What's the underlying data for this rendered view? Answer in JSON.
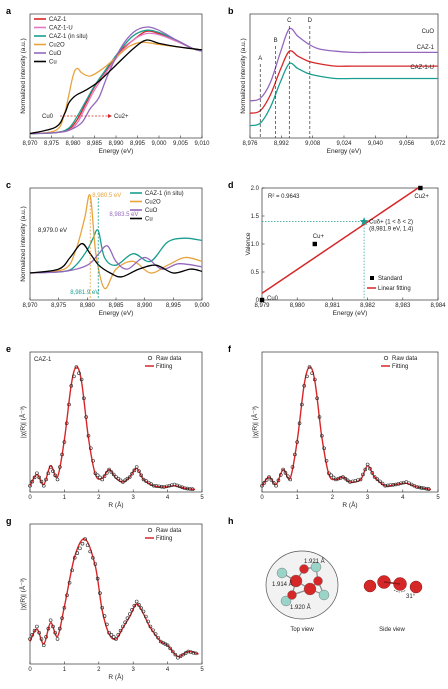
{
  "chart_data": [
    {
      "panel": "a",
      "type": "line",
      "xlabel": "Energy (eV)",
      "ylabel": "Normalized intensity (a.u.)",
      "xlim": [
        8970,
        9010
      ],
      "xticks": [
        "8,970",
        "8,975",
        "8,980",
        "8,985",
        "8,990",
        "8,995",
        "9,000",
        "9,005",
        "9,010"
      ],
      "legend": [
        "CAZ-1",
        "CAZ-1-U",
        "CAZ-1 (in situ)",
        "Cu2O",
        "CuO",
        "Cu"
      ],
      "annotations": [
        "Cu0",
        "Cu2+"
      ],
      "series": [
        {
          "name": "CAZ-1",
          "color": "#d62728",
          "x": [
            8970,
            8976,
            8979,
            8981,
            8983,
            8985,
            8988,
            8991,
            8994,
            8997,
            9000,
            9004,
            9008,
            9010
          ],
          "y": [
            0.02,
            0.03,
            0.06,
            0.15,
            0.3,
            0.45,
            0.62,
            0.78,
            0.88,
            0.96,
            0.94,
            0.88,
            0.8,
            0.78
          ]
        },
        {
          "name": "CAZ-1-U",
          "color": "#e377c2",
          "x": [
            8970,
            8976,
            8979,
            8981,
            8983,
            8985,
            8988,
            8991,
            8994,
            8997,
            9000,
            9004,
            9008,
            9010
          ],
          "y": [
            0.02,
            0.03,
            0.05,
            0.12,
            0.27,
            0.42,
            0.6,
            0.76,
            0.88,
            0.94,
            0.93,
            0.87,
            0.8,
            0.78
          ]
        },
        {
          "name": "CAZ-1 (in situ)",
          "color": "#1a9e8f",
          "x": [
            8970,
            8976,
            8979,
            8981,
            8983,
            8985,
            8988,
            8991,
            8994,
            8997,
            9000,
            9004,
            9008,
            9010
          ],
          "y": [
            0.02,
            0.03,
            0.07,
            0.18,
            0.32,
            0.46,
            0.63,
            0.79,
            0.92,
            0.97,
            0.95,
            0.88,
            0.8,
            0.78
          ]
        },
        {
          "name": "Cu2O",
          "color": "#e8a33d",
          "x": [
            8970,
            8976,
            8978,
            8980,
            8981,
            8982,
            8984,
            8987,
            8990,
            8993,
            8996,
            9000,
            9004,
            9008,
            9010
          ],
          "y": [
            0.02,
            0.05,
            0.2,
            0.55,
            0.62,
            0.58,
            0.55,
            0.62,
            0.72,
            0.82,
            0.86,
            0.84,
            0.82,
            0.8,
            0.79
          ]
        },
        {
          "name": "CuO",
          "color": "#9467bd",
          "x": [
            8970,
            8976,
            8979,
            8982,
            8984,
            8986,
            8988,
            8991,
            8994,
            8997,
            9000,
            9004,
            9008,
            9010
          ],
          "y": [
            0.02,
            0.03,
            0.05,
            0.12,
            0.25,
            0.35,
            0.55,
            0.8,
            0.95,
            1.0,
            0.97,
            0.88,
            0.8,
            0.78
          ]
        },
        {
          "name": "Cu",
          "color": "#000000",
          "x": [
            8970,
            8976,
            8978,
            8979,
            8980,
            8981,
            8983,
            8986,
            8990,
            8994,
            8997,
            9000,
            9004,
            9008,
            9010
          ],
          "y": [
            0.02,
            0.08,
            0.2,
            0.3,
            0.35,
            0.38,
            0.42,
            0.5,
            0.65,
            0.8,
            0.88,
            0.85,
            0.82,
            0.8,
            0.79
          ]
        }
      ]
    },
    {
      "panel": "b",
      "type": "line",
      "xlabel": "Energy (eV)",
      "ylabel": "Normalized intensity (a.u.)",
      "xlim": [
        8970,
        9080
      ],
      "xticks": [
        "8,976",
        "8,992",
        "9,008",
        "9,024",
        "9,040",
        "9,056",
        "9,072"
      ],
      "markers": [
        "A",
        "B",
        "C",
        "D"
      ],
      "series_labels": [
        "CuO",
        "CAZ-1",
        "CAZ-1-U"
      ],
      "series": [
        {
          "name": "CuO",
          "color": "#9467bd",
          "x": [
            8970,
            8976,
            8982,
            8988,
            8993,
            8998,
            9004,
            9010,
            9020,
            9030,
            9040,
            9050,
            9060,
            9070,
            9080
          ],
          "y": [
            0.4,
            0.42,
            0.55,
            0.8,
            0.98,
            0.92,
            0.86,
            0.82,
            0.8,
            0.79,
            0.79,
            0.79,
            0.79,
            0.79,
            0.79
          ]
        },
        {
          "name": "CAZ-1",
          "color": "#d62728",
          "x": [
            8970,
            8976,
            8982,
            8988,
            8993,
            8998,
            9004,
            9010,
            9020,
            9030,
            9040,
            9050,
            9060,
            9070,
            9080
          ],
          "y": [
            0.3,
            0.32,
            0.45,
            0.66,
            0.8,
            0.76,
            0.72,
            0.7,
            0.68,
            0.68,
            0.68,
            0.68,
            0.68,
            0.68,
            0.68
          ]
        },
        {
          "name": "CAZ-1-U",
          "color": "#1a9e8f",
          "x": [
            8970,
            8976,
            8982,
            8988,
            8993,
            8998,
            9004,
            9010,
            9020,
            9030,
            9040,
            9050,
            9060,
            9070,
            9080
          ],
          "y": [
            0.2,
            0.22,
            0.35,
            0.56,
            0.7,
            0.66,
            0.62,
            0.6,
            0.58,
            0.58,
            0.58,
            0.58,
            0.58,
            0.58,
            0.58
          ]
        }
      ]
    },
    {
      "panel": "c",
      "type": "line",
      "xlabel": "Energy (eV)",
      "ylabel": "Normalized intensity (a.u.)",
      "xlim": [
        8970,
        9000
      ],
      "xticks": [
        "8,970",
        "8,975",
        "8,980",
        "8,985",
        "8,990",
        "8,995",
        "9,000"
      ],
      "legend": [
        "CAZ-1 (in situ)",
        "Cu2O",
        "CuO",
        "Cu"
      ],
      "annotations": [
        "8,980.5 eV",
        "8,983.5 eV",
        "8,979.0 eV",
        "8,981.9 eV"
      ],
      "series": [
        {
          "name": "CAZ-1 (in situ)",
          "color": "#1a9e8f",
          "x": [
            8970,
            8976,
            8978,
            8980,
            8981,
            8981.9,
            8983,
            8985,
            8988,
            8991,
            8994,
            8997,
            9000
          ],
          "y": [
            0.0,
            0.02,
            0.1,
            0.3,
            0.45,
            0.55,
            0.2,
            0.1,
            0.25,
            0.15,
            0.4,
            0.45,
            0.42
          ]
        },
        {
          "name": "Cu2O",
          "color": "#e8a33d",
          "x": [
            8970,
            8976,
            8978,
            8979.5,
            8980.5,
            8981.5,
            8983,
            8985,
            8988,
            8991,
            8994,
            8997,
            9000
          ],
          "y": [
            0.0,
            0.05,
            0.3,
            0.7,
            1.0,
            0.25,
            -0.2,
            0.05,
            0.15,
            0.0,
            0.1,
            0.2,
            0.15
          ]
        },
        {
          "name": "CuO",
          "color": "#9467bd",
          "x": [
            8970,
            8976,
            8980,
            8982,
            8983.5,
            8985,
            8987,
            8990,
            8993,
            8996,
            9000
          ],
          "y": [
            0.0,
            0.02,
            0.1,
            0.25,
            0.35,
            0.15,
            0.05,
            0.2,
            0.05,
            0.12,
            0.08
          ]
        },
        {
          "name": "Cu",
          "color": "#000000",
          "x": [
            8970,
            8975,
            8977,
            8979,
            8980.5,
            8982,
            8984,
            8986,
            8989,
            8992,
            8995,
            8998,
            9000
          ],
          "y": [
            0.0,
            0.05,
            0.2,
            0.38,
            0.25,
            0.1,
            0.0,
            -0.05,
            0.05,
            0.1,
            0.0,
            0.05,
            0.02
          ]
        }
      ]
    },
    {
      "panel": "d",
      "type": "scatter",
      "xlabel": "Energy (eV)",
      "ylabel": "Valence",
      "xlim": [
        8979,
        8984
      ],
      "ylim": [
        0,
        2.0
      ],
      "xticks": [
        "8,979",
        "8,980",
        "8,981",
        "8,982",
        "8,983",
        "8,984"
      ],
      "yticks": [
        "0",
        "0.5",
        "1.0",
        "1.5",
        "2.0"
      ],
      "r2": "R² = 0.9643",
      "points": [
        {
          "label": "Cu0",
          "x": 8979.0,
          "y": 0
        },
        {
          "label": "Cu+",
          "x": 8980.5,
          "y": 1
        },
        {
          "label": "Cu2+",
          "x": 8983.5,
          "y": 2
        }
      ],
      "star": {
        "x": 8981.9,
        "y": 1.4,
        "label": "Cuδ+ (1 < δ < 2)",
        "sublabel": "(8,981.9 eV, 1.4)"
      },
      "fit": {
        "x": [
          8979.0,
          8983.5
        ],
        "y": [
          0.12,
          2.03
        ]
      },
      "legend": [
        "Standard",
        "Linear fitting"
      ]
    },
    {
      "panel": "e",
      "type": "line",
      "label": "CAZ-1",
      "xlabel": "R (Å)",
      "ylabel": "|χ(R)| (Å⁻³)",
      "xlim": [
        0,
        5
      ],
      "xticks": [
        "0",
        "1",
        "2",
        "3",
        "4",
        "5"
      ],
      "legend": [
        "Raw data",
        "Fitting"
      ],
      "raw": [
        [
          0.0,
          0.05
        ],
        [
          0.2,
          0.15
        ],
        [
          0.4,
          0.05
        ],
        [
          0.6,
          0.2
        ],
        [
          0.8,
          0.1
        ],
        [
          1.0,
          0.4
        ],
        [
          1.2,
          0.85
        ],
        [
          1.35,
          1.0
        ],
        [
          1.5,
          0.9
        ],
        [
          1.7,
          0.45
        ],
        [
          1.9,
          0.15
        ],
        [
          2.1,
          0.1
        ],
        [
          2.3,
          0.18
        ],
        [
          2.5,
          0.12
        ],
        [
          2.7,
          0.08
        ],
        [
          2.9,
          0.12
        ],
        [
          3.1,
          0.2
        ],
        [
          3.3,
          0.1
        ],
        [
          3.6,
          0.05
        ],
        [
          3.9,
          0.04
        ],
        [
          4.2,
          0.06
        ],
        [
          4.5,
          0.03
        ],
        [
          4.8,
          0.02
        ]
      ],
      "fit": [
        [
          0.0,
          0.05
        ],
        [
          0.2,
          0.14
        ],
        [
          0.4,
          0.06
        ],
        [
          0.6,
          0.21
        ],
        [
          0.8,
          0.12
        ],
        [
          1.0,
          0.42
        ],
        [
          1.2,
          0.86
        ],
        [
          1.35,
          1.0
        ],
        [
          1.5,
          0.88
        ],
        [
          1.7,
          0.43
        ],
        [
          1.9,
          0.14
        ],
        [
          2.1,
          0.11
        ],
        [
          2.3,
          0.18
        ],
        [
          2.5,
          0.11
        ],
        [
          2.7,
          0.08
        ],
        [
          2.9,
          0.12
        ],
        [
          3.1,
          0.19
        ],
        [
          3.3,
          0.1
        ],
        [
          3.6,
          0.05
        ],
        [
          3.9,
          0.04
        ],
        [
          4.2,
          0.05
        ],
        [
          4.5,
          0.03
        ],
        [
          4.8,
          0.02
        ]
      ]
    },
    {
      "panel": "f",
      "type": "line",
      "xlabel": "R (Å)",
      "ylabel": "|χ(R)| (Å⁻³)",
      "xlim": [
        0,
        5
      ],
      "xticks": [
        "0",
        "1",
        "2",
        "3",
        "4",
        "5"
      ],
      "legend": [
        "Raw data",
        "Fitting"
      ],
      "raw": [
        [
          0.0,
          0.05
        ],
        [
          0.2,
          0.12
        ],
        [
          0.4,
          0.05
        ],
        [
          0.6,
          0.18
        ],
        [
          0.8,
          0.1
        ],
        [
          1.0,
          0.4
        ],
        [
          1.2,
          0.85
        ],
        [
          1.35,
          1.0
        ],
        [
          1.5,
          0.9
        ],
        [
          1.7,
          0.45
        ],
        [
          1.9,
          0.15
        ],
        [
          2.1,
          0.1
        ],
        [
          2.3,
          0.12
        ],
        [
          2.5,
          0.08
        ],
        [
          2.8,
          0.1
        ],
        [
          3.0,
          0.22
        ],
        [
          3.2,
          0.12
        ],
        [
          3.5,
          0.05
        ],
        [
          3.8,
          0.06
        ],
        [
          4.1,
          0.08
        ],
        [
          4.4,
          0.04
        ],
        [
          4.8,
          0.02
        ]
      ],
      "fit": [
        [
          0.0,
          0.05
        ],
        [
          0.2,
          0.12
        ],
        [
          0.4,
          0.06
        ],
        [
          0.6,
          0.18
        ],
        [
          0.8,
          0.11
        ],
        [
          1.0,
          0.41
        ],
        [
          1.2,
          0.86
        ],
        [
          1.35,
          1.0
        ],
        [
          1.5,
          0.89
        ],
        [
          1.7,
          0.44
        ],
        [
          1.9,
          0.14
        ],
        [
          2.1,
          0.1
        ],
        [
          2.3,
          0.12
        ],
        [
          2.5,
          0.08
        ],
        [
          2.8,
          0.1
        ],
        [
          3.0,
          0.21
        ],
        [
          3.2,
          0.12
        ],
        [
          3.5,
          0.05
        ],
        [
          3.8,
          0.06
        ],
        [
          4.1,
          0.07
        ],
        [
          4.4,
          0.04
        ],
        [
          4.8,
          0.02
        ]
      ]
    },
    {
      "panel": "g",
      "type": "line",
      "xlabel": "R (Å)",
      "ylabel": "|χ(R)| (Å⁻³)",
      "xlim": [
        0,
        5
      ],
      "xticks": [
        "0",
        "1",
        "2",
        "3",
        "4",
        "5"
      ],
      "legend": [
        "Raw data",
        "Fitting"
      ],
      "raw": [
        [
          0.0,
          0.2
        ],
        [
          0.2,
          0.3
        ],
        [
          0.4,
          0.15
        ],
        [
          0.6,
          0.35
        ],
        [
          0.8,
          0.2
        ],
        [
          1.0,
          0.45
        ],
        [
          1.3,
          0.85
        ],
        [
          1.6,
          1.0
        ],
        [
          1.9,
          0.8
        ],
        [
          2.1,
          0.45
        ],
        [
          2.3,
          0.25
        ],
        [
          2.5,
          0.2
        ],
        [
          2.7,
          0.3
        ],
        [
          2.9,
          0.4
        ],
        [
          3.1,
          0.5
        ],
        [
          3.3,
          0.42
        ],
        [
          3.5,
          0.3
        ],
        [
          3.8,
          0.18
        ],
        [
          4.0,
          0.15
        ],
        [
          4.3,
          0.05
        ],
        [
          4.6,
          0.1
        ],
        [
          4.9,
          0.08
        ]
      ],
      "fit": [
        [
          0.0,
          0.18
        ],
        [
          0.2,
          0.28
        ],
        [
          0.4,
          0.16
        ],
        [
          0.6,
          0.33
        ],
        [
          0.8,
          0.22
        ],
        [
          1.0,
          0.46
        ],
        [
          1.3,
          0.86
        ],
        [
          1.6,
          1.0
        ],
        [
          1.9,
          0.78
        ],
        [
          2.1,
          0.43
        ],
        [
          2.3,
          0.24
        ],
        [
          2.5,
          0.2
        ],
        [
          2.7,
          0.29
        ],
        [
          2.9,
          0.38
        ],
        [
          3.1,
          0.48
        ],
        [
          3.3,
          0.4
        ],
        [
          3.5,
          0.29
        ],
        [
          3.8,
          0.18
        ],
        [
          4.0,
          0.15
        ],
        [
          4.3,
          0.06
        ],
        [
          4.6,
          0.1
        ],
        [
          4.9,
          0.08
        ]
      ]
    }
  ],
  "panel_h": {
    "top_view": "Top view",
    "side_view": "Side view",
    "bonds": [
      "1.921 Å",
      "1.914 Å",
      "1.920 Å"
    ],
    "angle": "31°"
  },
  "panel_labels": [
    "a",
    "b",
    "c",
    "d",
    "e",
    "f",
    "g",
    "h"
  ]
}
